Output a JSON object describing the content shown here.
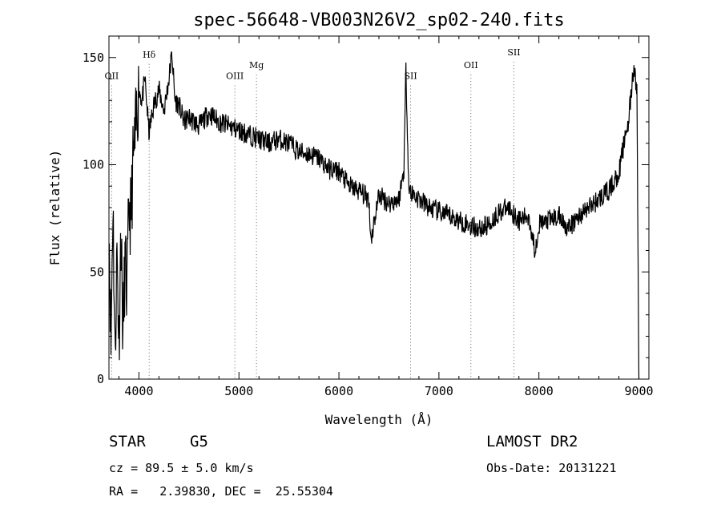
{
  "chart_data": {
    "type": "line",
    "title": "spec-56648-VB003N26V2_sp02-240.fits",
    "xlabel": "Wavelength (Å)",
    "ylabel": "Flux (relative)",
    "xlim": [
      3700,
      9100
    ],
    "ylim": [
      0,
      160
    ],
    "x_ticks": [
      4000,
      5000,
      6000,
      7000,
      8000,
      9000
    ],
    "y_ticks": [
      0,
      50,
      100,
      150
    ],
    "grid": false,
    "series": [
      {
        "x": [
          3700,
          3720,
          3740,
          3760,
          3780,
          3800,
          3820,
          3840,
          3860,
          3880,
          3900,
          3920,
          3940,
          3960,
          3980,
          4000,
          4030,
          4060,
          4100,
          4150,
          4200,
          4250,
          4300,
          4330,
          4360,
          4400,
          4450,
          4500,
          4600,
          4700,
          4800,
          4900,
          5000,
          5100,
          5200,
          5300,
          5400,
          5500,
          5600,
          5700,
          5800,
          5900,
          6000,
          6100,
          6200,
          6300,
          6320,
          6400,
          6500,
          6600,
          6650,
          6670,
          6700,
          6800,
          6900,
          7000,
          7100,
          7200,
          7300,
          7400,
          7500,
          7600,
          7700,
          7800,
          7900,
          7960,
          8000,
          8100,
          8200,
          8300,
          8400,
          8500,
          8600,
          8700,
          8750,
          8800,
          8850,
          8900,
          8950,
          8980,
          9000
        ],
        "y": [
          78,
          15,
          85,
          10,
          60,
          18,
          70,
          20,
          55,
          40,
          80,
          75,
          100,
          110,
          125,
          135,
          130,
          140,
          115,
          128,
          135,
          125,
          140,
          152,
          130,
          128,
          120,
          122,
          118,
          124,
          120,
          118,
          116,
          114,
          112,
          110,
          112,
          110,
          106,
          105,
          103,
          98,
          97,
          90,
          88,
          84,
          65,
          86,
          82,
          84,
          98,
          145,
          88,
          84,
          80,
          78,
          76,
          74,
          72,
          70,
          72,
          78,
          80,
          74,
          76,
          60,
          72,
          74,
          76,
          70,
          76,
          80,
          84,
          88,
          92,
          96,
          110,
          122,
          145,
          135,
          0
        ]
      }
    ],
    "line_markers": [
      {
        "label": "OII",
        "x": 3727,
        "label_y": 140
      },
      {
        "label": "Hδ",
        "x": 4102,
        "label_y": 150
      },
      {
        "label": "OIII",
        "x": 4959,
        "label_y": 140
      },
      {
        "label": "Mg",
        "x": 5175,
        "label_y": 145
      },
      {
        "label": "SII",
        "x": 6717,
        "label_y": 140
      },
      {
        "label": "OII",
        "x": 7320,
        "label_y": 145
      },
      {
        "label": "SII",
        "x": 7750,
        "label_y": 151
      }
    ]
  },
  "info": {
    "object_class": "STAR",
    "subclass": "G5",
    "survey": "LAMOST DR2",
    "cz": "cz = 89.5 ± 5.0 km/s",
    "obs_date": "Obs-Date: 20131221",
    "coords": "RA =   2.39830, DEC =  25.55304"
  }
}
